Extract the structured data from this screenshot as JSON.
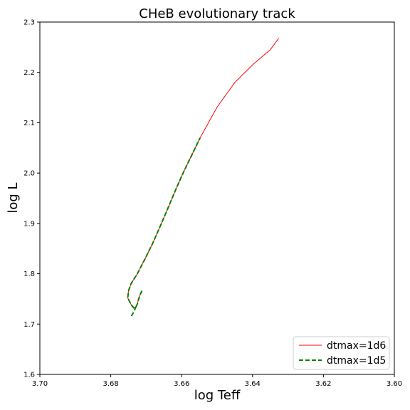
{
  "chart_data": {
    "type": "line",
    "title": "CHeB evolutionary track",
    "xlabel": "log Teff",
    "ylabel": "log L",
    "xlim": [
      3.7,
      3.6
    ],
    "ylim": [
      1.6,
      2.3
    ],
    "x_inverted": true,
    "grid": false,
    "legend_position": "lower-right",
    "xticks": [
      "3.70",
      "3.68",
      "3.66",
      "3.64",
      "3.62",
      "3.60"
    ],
    "yticks": [
      "1.6",
      "1.7",
      "1.8",
      "1.9",
      "2.0",
      "2.1",
      "2.2",
      "2.3"
    ],
    "series": [
      {
        "name": "dtmax=1d6",
        "color": "#ff0000",
        "style": "solid",
        "points": [
          [
            3.6712,
            1.766
          ],
          [
            3.6718,
            1.757
          ],
          [
            3.6722,
            1.748
          ],
          [
            3.6725,
            1.74
          ],
          [
            3.6729,
            1.734
          ],
          [
            3.6735,
            1.732
          ],
          [
            3.6742,
            1.738
          ],
          [
            3.6752,
            1.752
          ],
          [
            3.675,
            1.766
          ],
          [
            3.6742,
            1.781
          ],
          [
            3.6725,
            1.8
          ],
          [
            3.6703,
            1.83
          ],
          [
            3.6682,
            1.86
          ],
          [
            3.6662,
            1.892
          ],
          [
            3.664,
            1.928
          ],
          [
            3.6618,
            1.965
          ],
          [
            3.6596,
            2.0
          ],
          [
            3.6572,
            2.035
          ],
          [
            3.6548,
            2.07
          ],
          [
            3.65,
            2.131
          ],
          [
            3.645,
            2.18
          ],
          [
            3.64,
            2.215
          ],
          [
            3.635,
            2.245
          ],
          [
            3.6326,
            2.268
          ]
        ]
      },
      {
        "name": "dtmax=1d5",
        "color": "#008000",
        "style": "dashed",
        "points": [
          [
            3.6712,
            1.766
          ],
          [
            3.6718,
            1.757
          ],
          [
            3.6722,
            1.748
          ],
          [
            3.6725,
            1.74
          ],
          [
            3.6729,
            1.734
          ],
          [
            3.6735,
            1.732
          ],
          [
            3.6742,
            1.738
          ],
          [
            3.6752,
            1.752
          ],
          [
            3.675,
            1.766
          ],
          [
            3.6742,
            1.781
          ],
          [
            3.6725,
            1.8
          ],
          [
            3.6703,
            1.83
          ],
          [
            3.6682,
            1.86
          ],
          [
            3.6662,
            1.892
          ],
          [
            3.664,
            1.928
          ],
          [
            3.6618,
            1.965
          ],
          [
            3.6596,
            2.0
          ],
          [
            3.6572,
            2.035
          ],
          [
            3.6548,
            2.07
          ]
        ],
        "extra_points": [
          [
            3.6742,
            1.716
          ],
          [
            3.6735,
            1.724
          ],
          [
            3.6729,
            1.734
          ]
        ]
      }
    ]
  }
}
